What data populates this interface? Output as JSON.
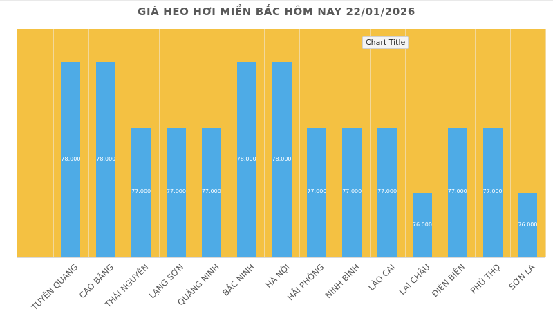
{
  "header": {
    "title": "GIÁ HEO HƠI MIỀN BẮC HÔM NAY 22/01/2026"
  },
  "tooltip": {
    "text": "Chart Title"
  },
  "colors": {
    "plot_bg": "#f4c142",
    "bar": "#4eabe6",
    "gridline": "#f2d89a",
    "title": "#595959",
    "label": "#ffffff"
  },
  "chart_data": {
    "type": "bar",
    "title": "GIÁ HEO HƠI MIỀN BẮC HÔM NAY 22/01/2026",
    "xlabel": "",
    "ylabel": "",
    "categories": [
      "TUYÊN QUANG",
      "CAO BẰNG",
      "THÁI NGUYÊN",
      "LẠNG SƠN",
      "QUẢNG NINH",
      "BẮC NINH",
      "HÀ NỘI",
      "HẢI PHÒNG",
      "NINH BÌNH",
      "LÀO CAI",
      "LAI CHÂU",
      "ĐIỆN BIÊN",
      "PHÚ THỌ",
      "SƠN LA"
    ],
    "values": [
      78000,
      78000,
      77000,
      77000,
      77000,
      78000,
      78000,
      77000,
      77000,
      77000,
      76000,
      77000,
      77000,
      76000
    ],
    "value_labels": [
      "78.000",
      "78.000",
      "77.000",
      "77.000",
      "77.000",
      "78.000",
      "78.000",
      "77.000",
      "77.000",
      "77.000",
      "76.000",
      "77.000",
      "77.000",
      "76.000"
    ],
    "grid": true,
    "legend": "none",
    "y_axis_visible": false
  }
}
